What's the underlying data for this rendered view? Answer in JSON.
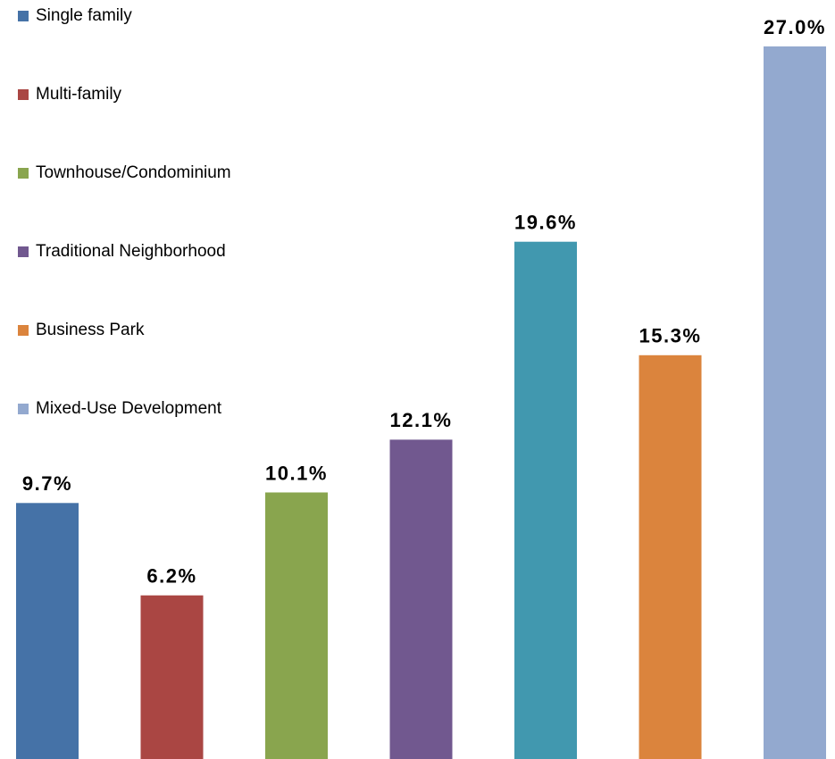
{
  "chart_data": {
    "type": "bar",
    "series": [
      {
        "name": "Single family",
        "color": "#4572a7",
        "values": [
          9.7
        ],
        "value_labels": [
          "9.7%"
        ]
      },
      {
        "name": "Multi-family",
        "color": "#aa4643",
        "values": [
          6.2
        ],
        "value_labels": [
          "6.2%"
        ]
      },
      {
        "name": "Townhouse/Condominium",
        "color": "#89a54e",
        "values": [
          10.1
        ],
        "value_labels": [
          "10.1%"
        ]
      },
      {
        "name": "Traditional Neighborhood",
        "color": "#71588f",
        "values": [
          12.1
        ],
        "value_labels": [
          "12.1%"
        ]
      },
      {
        "name": null,
        "color": "#4198af",
        "values": [
          19.6
        ],
        "value_labels": [
          "19.6%"
        ]
      },
      {
        "name": "Business Park",
        "color": "#db843d",
        "values": [
          15.3
        ],
        "value_labels": [
          "15.3%"
        ]
      },
      {
        "name": "Mixed-Use Development",
        "color": "#93a9cf",
        "values": [
          27.0
        ],
        "value_labels": [
          "27.0%"
        ]
      }
    ],
    "legend": "upper left"
  }
}
